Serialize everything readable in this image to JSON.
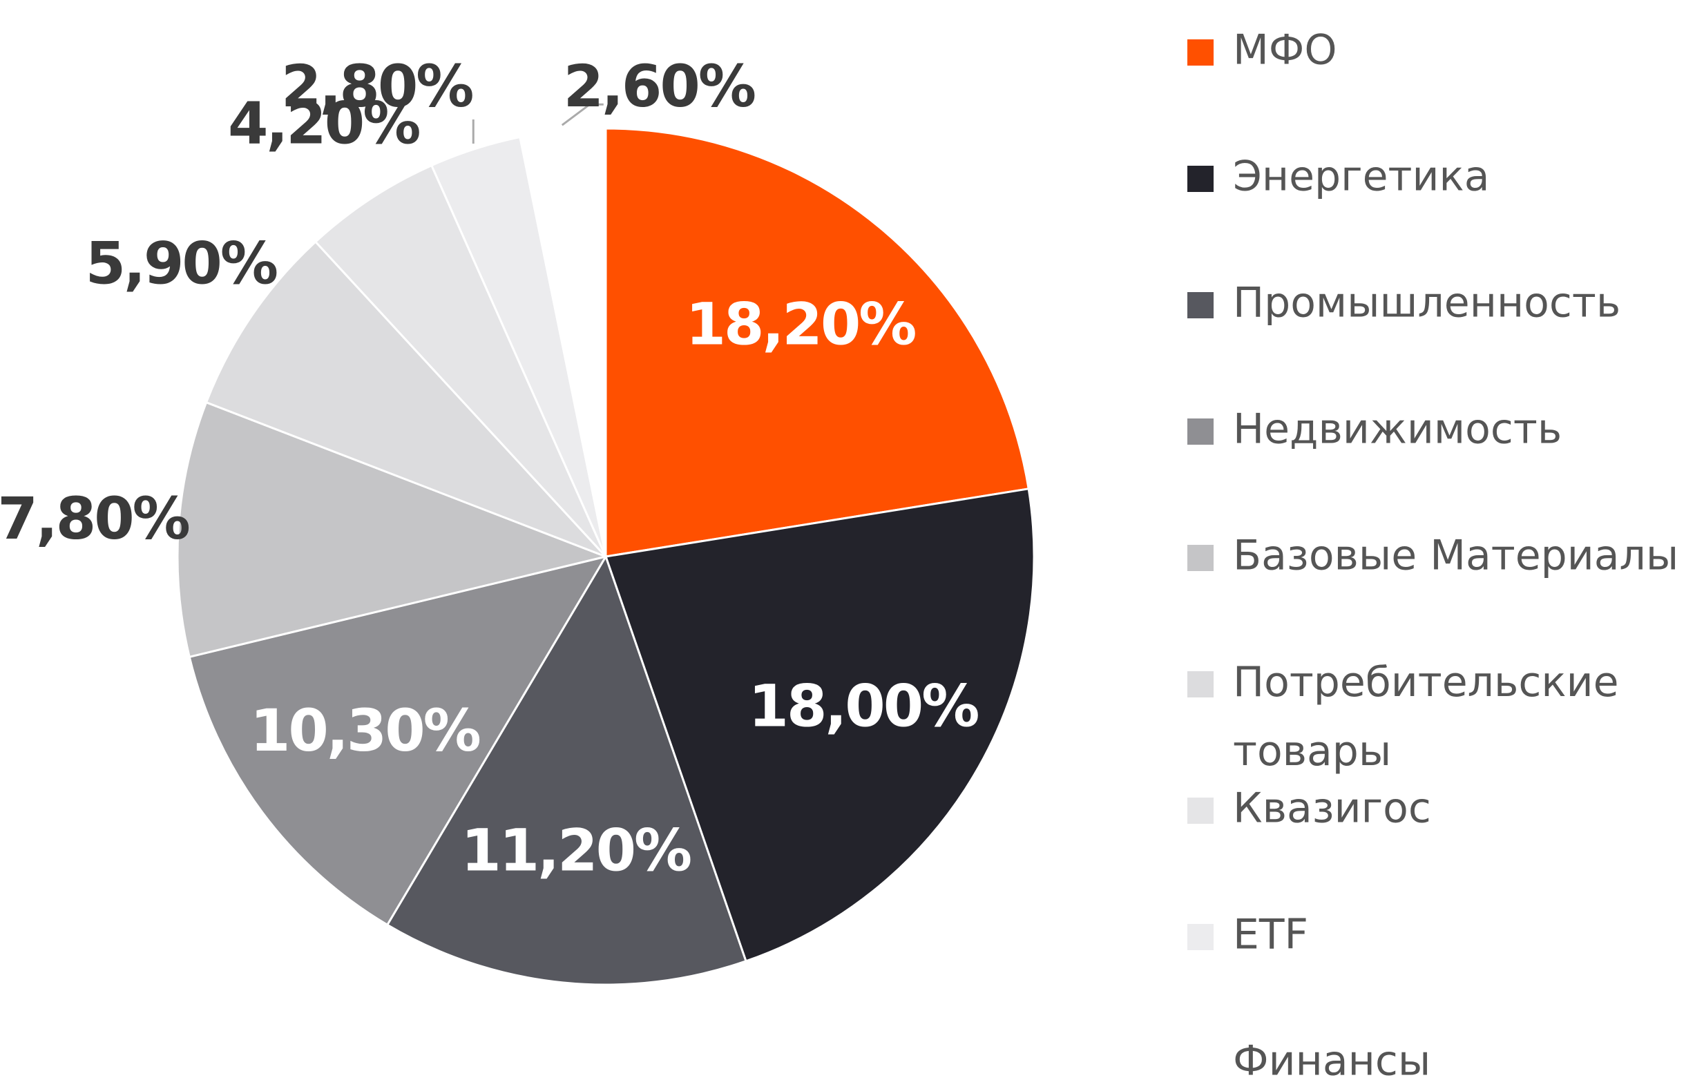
{
  "chart_data": {
    "type": "pie",
    "categories": [
      "МФО",
      "Энергетика",
      "Промышленность",
      "Недвижимость",
      "Базовые Материалы",
      "Потребительские товары",
      "Квазигос",
      "ETF",
      "Финансы"
    ],
    "values": [
      18.2,
      18.0,
      11.2,
      10.3,
      7.8,
      5.9,
      4.2,
      2.8,
      2.6
    ],
    "value_labels": [
      "18,20%",
      "18,00%",
      "11,20%",
      "10,30%",
      "7,80%",
      "5,90%",
      "4,20%",
      "2,80%",
      "2,60%"
    ],
    "colors": [
      "#ff5000",
      "#23232b",
      "#57585f",
      "#8f8f93",
      "#c5c5c7",
      "#dcdcde",
      "#e5e5e7",
      "#ececee",
      "#ffffff"
    ],
    "legend": "right"
  }
}
